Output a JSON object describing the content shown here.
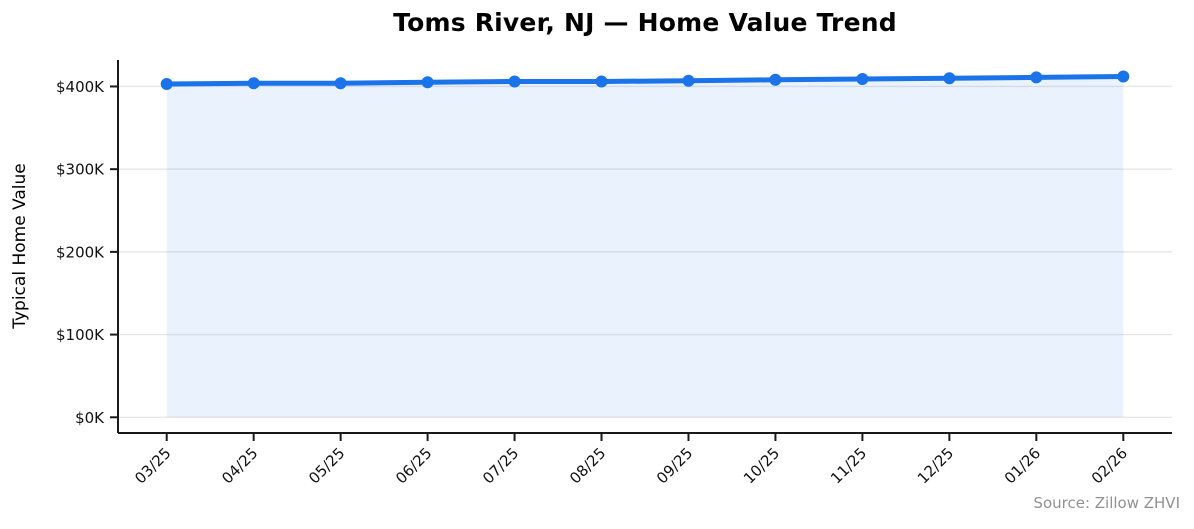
{
  "chart_data": {
    "type": "line",
    "title": "Toms River, NJ — Home Value Trend",
    "ylabel": "Typical Home Value",
    "xlabel": "",
    "categories": [
      "03/25",
      "04/25",
      "05/25",
      "06/25",
      "07/25",
      "08/25",
      "09/25",
      "10/25",
      "11/25",
      "12/25",
      "01/26",
      "02/26"
    ],
    "series": [
      {
        "name": "Typical Home Value",
        "values_thousands": [
          403,
          404,
          404,
          405,
          406,
          406,
          407,
          408,
          409,
          410,
          411,
          412
        ]
      }
    ],
    "unit": "USD thousands",
    "yticks": {
      "values": [
        0,
        100,
        200,
        300,
        400
      ],
      "labels": [
        "$0K",
        "$100K",
        "$200K",
        "$300K",
        "$400K"
      ]
    },
    "ylim": [
      -19,
      432
    ],
    "grid": "horizontal",
    "legend_position": "none",
    "line_color": "#1a73e8",
    "fill_color": "rgba(26,115,232,0.09)",
    "marker": "circle",
    "gridline_color": "#e6e6e6",
    "axis_color": "#1a1a1a",
    "source_note": "Source: Zillow ZHVI"
  }
}
